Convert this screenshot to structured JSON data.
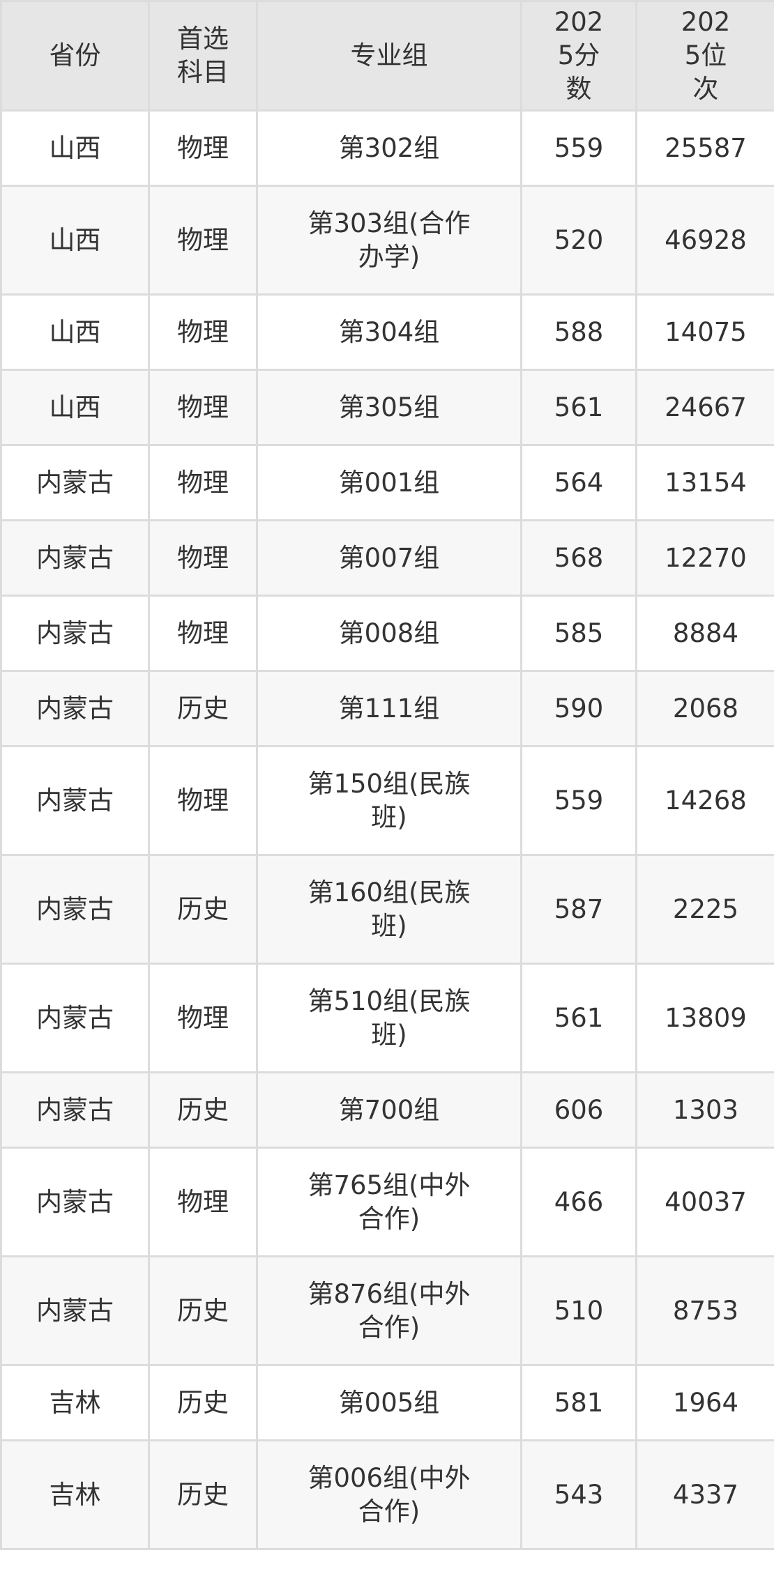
{
  "table": {
    "headers": [
      "省份",
      "首选科目",
      "专业组",
      "2025分数",
      "2025位次"
    ],
    "rows": [
      {
        "province": "山西",
        "subject": "物理",
        "group": "第302组",
        "score": "559",
        "rank": "25587"
      },
      {
        "province": "山西",
        "subject": "物理",
        "group": "第303组(合作办学)",
        "score": "520",
        "rank": "46928"
      },
      {
        "province": "山西",
        "subject": "物理",
        "group": "第304组",
        "score": "588",
        "rank": "14075"
      },
      {
        "province": "山西",
        "subject": "物理",
        "group": "第305组",
        "score": "561",
        "rank": "24667"
      },
      {
        "province": "内蒙古",
        "subject": "物理",
        "group": "第001组",
        "score": "564",
        "rank": "13154"
      },
      {
        "province": "内蒙古",
        "subject": "物理",
        "group": "第007组",
        "score": "568",
        "rank": "12270"
      },
      {
        "province": "内蒙古",
        "subject": "物理",
        "group": "第008组",
        "score": "585",
        "rank": "8884"
      },
      {
        "province": "内蒙古",
        "subject": "历史",
        "group": "第111组",
        "score": "590",
        "rank": "2068"
      },
      {
        "province": "内蒙古",
        "subject": "物理",
        "group": "第150组(民族班)",
        "score": "559",
        "rank": "14268"
      },
      {
        "province": "内蒙古",
        "subject": "历史",
        "group": "第160组(民族班)",
        "score": "587",
        "rank": "2225"
      },
      {
        "province": "内蒙古",
        "subject": "物理",
        "group": "第510组(民族班)",
        "score": "561",
        "rank": "13809"
      },
      {
        "province": "内蒙古",
        "subject": "历史",
        "group": "第700组",
        "score": "606",
        "rank": "1303"
      },
      {
        "province": "内蒙古",
        "subject": "物理",
        "group": "第765组(中外合作)",
        "score": "466",
        "rank": "40037"
      },
      {
        "province": "内蒙古",
        "subject": "历史",
        "group": "第876组(中外合作)",
        "score": "510",
        "rank": "8753"
      },
      {
        "province": "吉林",
        "subject": "历史",
        "group": "第005组",
        "score": "581",
        "rank": "1964"
      },
      {
        "province": "吉林",
        "subject": "历史",
        "group": "第006组(中外合作)",
        "score": "543",
        "rank": "4337"
      }
    ]
  },
  "colors": {
    "header_bg": "#e6e6e6",
    "row_alt_bg": "#f7f7f7",
    "border": "#dcdcdc",
    "text": "#333333"
  }
}
